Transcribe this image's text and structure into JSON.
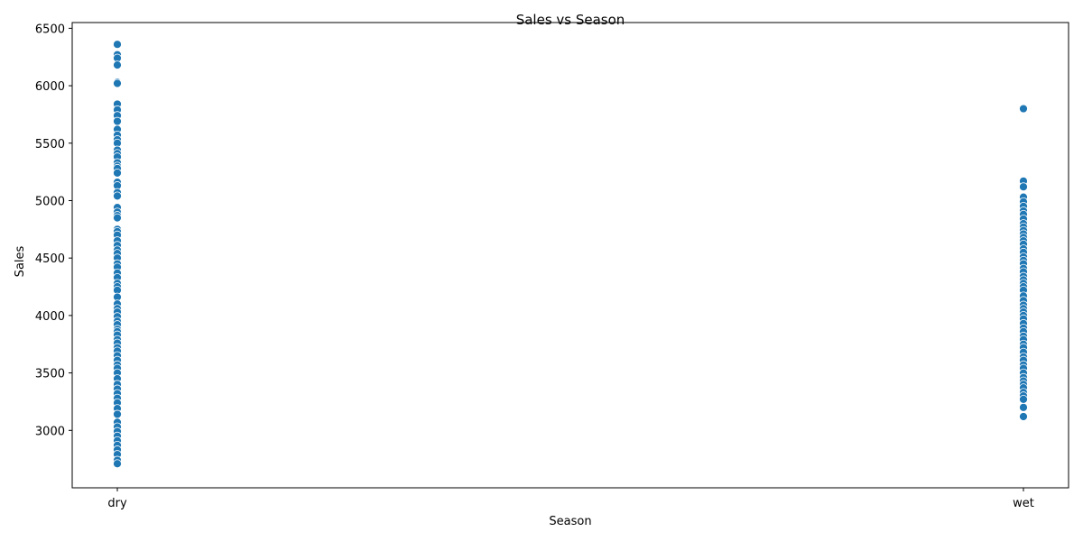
{
  "chart_data": {
    "type": "scatter",
    "title": "Sales vs Season",
    "xlabel": "Season",
    "ylabel": "Sales",
    "categories": [
      "dry",
      "wet"
    ],
    "ylim": [
      2500,
      6550
    ],
    "yticks": [
      3000,
      3500,
      4000,
      4500,
      5000,
      5500,
      6000,
      6500
    ],
    "marker_color": "#1f77b4",
    "grid": false,
    "legend": "none",
    "series": [
      {
        "values": [
          {
            "x": "dry",
            "y": [
              6360,
              6270,
              6240,
              6180,
              6030,
              6020,
              5840,
              5790,
              5740,
              5690,
              5620,
              5570,
              5530,
              5500,
              5440,
              5410,
              5380,
              5330,
              5300,
              5280,
              5240,
              5160,
              5130,
              5070,
              5040,
              4940,
              4900,
              4870,
              4850,
              4750,
              4730,
              4700,
              4650,
              4610,
              4570,
              4540,
              4500,
              4450,
              4420,
              4370,
              4330,
              4280,
              4250,
              4220,
              4160,
              4100,
              4060,
              4030,
              3990,
              3950,
              3920,
              3880,
              3860,
              3830,
              3790,
              3760,
              3720,
              3690,
              3650,
              3610,
              3570,
              3540,
              3500,
              3450,
              3400,
              3360,
              3320,
              3280,
              3240,
              3190,
              3140,
              3070,
              3030,
              2990,
              2950,
              2910,
              2870,
              2830,
              2790,
              2740,
              2710
            ]
          },
          {
            "x": "wet",
            "y": [
              5800,
              5170,
              5120,
              5030,
              4990,
              4950,
              4910,
              4880,
              4840,
              4800,
              4770,
              4740,
              4710,
              4680,
              4650,
              4620,
              4580,
              4550,
              4510,
              4480,
              4450,
              4410,
              4380,
              4340,
              4310,
              4280,
              4250,
              4220,
              4170,
              4130,
              4090,
              4060,
              4030,
              4000,
              3970,
              3930,
              3890,
              3860,
              3820,
              3790,
              3750,
              3720,
              3680,
              3640,
              3610,
              3570,
              3540,
              3500,
              3460,
              3430,
              3400,
              3370,
              3330,
              3300,
              3270,
              3200,
              3120
            ]
          }
        ]
      }
    ]
  }
}
